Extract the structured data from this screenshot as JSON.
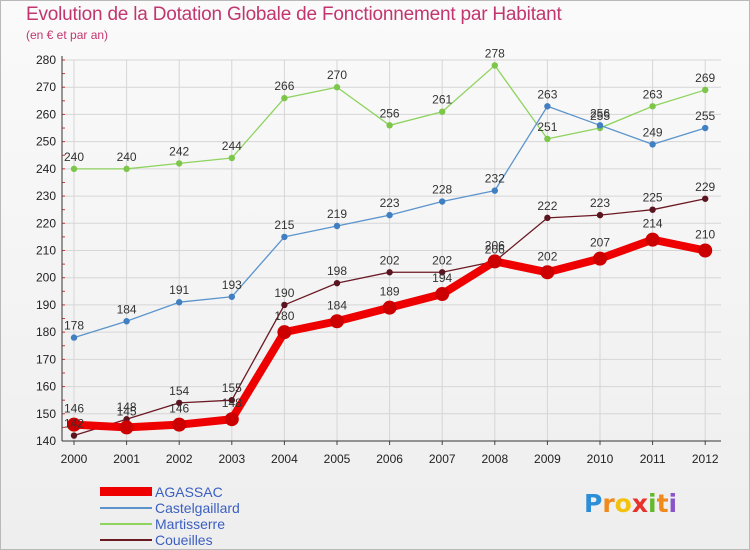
{
  "chart_data": {
    "type": "line",
    "title": "Evolution de la Dotation Globale de Fonctionnement par Habitant",
    "subtitle": "(en € et par an)",
    "x": [
      "2000",
      "2001",
      "2002",
      "2003",
      "2004",
      "2005",
      "2006",
      "2007",
      "2008",
      "2009",
      "2010",
      "2011",
      "2012"
    ],
    "ylim": [
      140,
      280
    ],
    "yticks": [
      140,
      150,
      160,
      170,
      180,
      190,
      200,
      210,
      220,
      230,
      240,
      250,
      260,
      270,
      280
    ],
    "grid": true,
    "series": [
      {
        "name": "AGASSAC",
        "color": "#ee0000",
        "values": [
          146,
          145,
          146,
          148,
          180,
          184,
          189,
          194,
          206,
          202,
          207,
          214,
          210
        ]
      },
      {
        "name": "Castelgaillard",
        "color": "#5b94cc",
        "values": [
          178,
          184,
          191,
          193,
          215,
          219,
          223,
          228,
          232,
          263,
          256,
          249,
          255
        ]
      },
      {
        "name": "Martisserre",
        "color": "#8ed35e",
        "values": [
          240,
          240,
          242,
          244,
          266,
          270,
          256,
          261,
          278,
          251,
          255,
          263,
          269
        ]
      },
      {
        "name": "Coueilles",
        "color": "#6b1a24",
        "values": [
          142,
          148,
          154,
          155,
          190,
          198,
          202,
          202,
          206,
          222,
          223,
          225,
          229
        ]
      }
    ]
  },
  "brand": {
    "letters": [
      "P",
      "r",
      "o",
      "x",
      "i",
      "t",
      "i"
    ],
    "colors": [
      "#2d8ed8",
      "#f08a1c",
      "#f4c20d",
      "#e8312a",
      "#64b82e",
      "#f08a1c",
      "#8a55c8"
    ]
  }
}
